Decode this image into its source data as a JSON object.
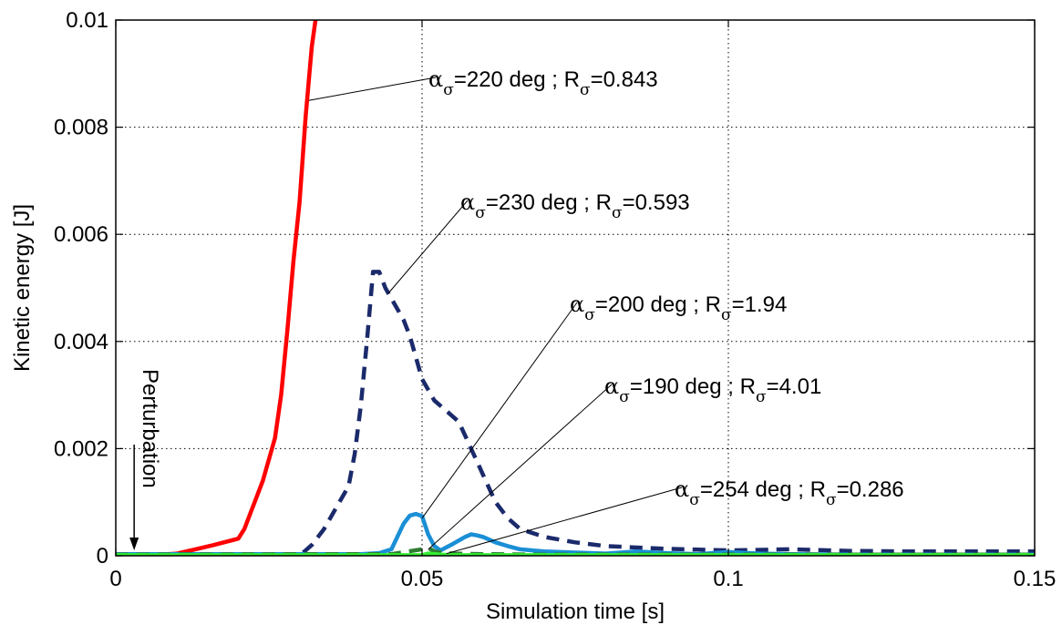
{
  "chart_data": {
    "type": "line",
    "title": "",
    "xlabel": "Simulation time [s]",
    "ylabel": "Kinetic energy [J]",
    "xlim": [
      0,
      0.15
    ],
    "ylim": [
      0,
      0.01
    ],
    "x_ticks": [
      0,
      0.05,
      0.1,
      0.15
    ],
    "x_tick_labels": [
      "0",
      "0.05",
      "0.1",
      "0.15"
    ],
    "y_ticks": [
      0,
      0.002,
      0.004,
      0.006,
      0.008,
      0.01
    ],
    "y_tick_labels": [
      "0",
      "0.002",
      "0.004",
      "0.006",
      "0.008",
      "0.01"
    ],
    "grid": true,
    "series": [
      {
        "key": "a220",
        "color": "#ff0000",
        "dash": "solid",
        "x": [
          0,
          0.006,
          0.01,
          0.013,
          0.016,
          0.018,
          0.02,
          0.021,
          0.022,
          0.023,
          0.024,
          0.025,
          0.026,
          0.027,
          0.028,
          0.029,
          0.03,
          0.031,
          0.032,
          0.0326
        ],
        "y": [
          0,
          1e-05,
          4e-05,
          0.00012,
          0.0002,
          0.00026,
          0.00032,
          0.0005,
          0.0008,
          0.0011,
          0.0014,
          0.0018,
          0.0022,
          0.003,
          0.0042,
          0.0055,
          0.0066,
          0.0082,
          0.0095,
          0.01
        ]
      },
      {
        "key": "a230",
        "color": "#1b2a6b",
        "dash": "dashed",
        "x": [
          0,
          0.03,
          0.032,
          0.034,
          0.036,
          0.038,
          0.039,
          0.04,
          0.041,
          0.042,
          0.043,
          0.044,
          0.045,
          0.046,
          0.047,
          0.048,
          0.049,
          0.05,
          0.052,
          0.054,
          0.056,
          0.058,
          0.06,
          0.062,
          0.064,
          0.066,
          0.07,
          0.075,
          0.08,
          0.09,
          0.1,
          0.11,
          0.12,
          0.13,
          0.14,
          0.15
        ],
        "y": [
          0,
          0,
          0.0002,
          0.0005,
          0.0009,
          0.0013,
          0.0019,
          0.0028,
          0.004,
          0.0053,
          0.0053,
          0.005,
          0.0048,
          0.0046,
          0.0044,
          0.0041,
          0.0037,
          0.0033,
          0.0029,
          0.0027,
          0.0025,
          0.002,
          0.0015,
          0.001,
          0.0007,
          0.0005,
          0.00035,
          0.00025,
          0.00018,
          0.00013,
          0.0001,
          0.00012,
          9e-05,
          8e-05,
          8e-05,
          8e-05
        ]
      },
      {
        "key": "a200",
        "color": "#1a8fd6",
        "dash": "solid",
        "x": [
          0,
          0.04,
          0.043,
          0.045,
          0.047,
          0.048,
          0.049,
          0.05,
          0.051,
          0.052,
          0.053,
          0.055,
          0.057,
          0.058,
          0.059,
          0.06,
          0.062,
          0.064,
          0.066,
          0.068,
          0.07,
          0.075,
          0.08,
          0.085,
          0.09,
          0.095,
          0.1,
          0.105,
          0.11,
          0.12,
          0.15
        ],
        "y": [
          3e-05,
          3e-05,
          5e-05,
          0.00012,
          0.0006,
          0.00075,
          0.00078,
          0.00074,
          0.0004,
          0.00018,
          0.0001,
          0.00022,
          0.00035,
          0.0004,
          0.00038,
          0.00035,
          0.00025,
          0.00018,
          0.00012,
          0.0001,
          8e-05,
          6e-05,
          4e-05,
          8e-05,
          5e-05,
          3e-05,
          7e-05,
          4e-05,
          3e-05,
          2e-05,
          2e-05
        ]
      },
      {
        "key": "a190",
        "color": "#2e7d32",
        "dash": "dashed",
        "x": [
          0,
          0.045,
          0.05,
          0.051,
          0.052,
          0.055,
          0.06,
          0.07,
          0.15
        ],
        "y": [
          2e-05,
          3e-05,
          0.00012,
          0.00015,
          8e-05,
          4e-05,
          3e-05,
          2e-05,
          2e-05
        ]
      },
      {
        "key": "a254",
        "color": "#33ee33",
        "dash": "solid",
        "x": [
          0,
          0.05,
          0.051,
          0.053,
          0.055,
          0.06,
          0.15
        ],
        "y": [
          1e-05,
          1e-05,
          4e-05,
          2e-05,
          1e-05,
          1e-05,
          1e-05
        ]
      }
    ],
    "annotations": [
      {
        "series": "a220",
        "alpha_val": "220",
        "r_val": "0.843",
        "target": [
          0.0315,
          0.0085
        ]
      },
      {
        "series": "a230",
        "alpha_val": "230",
        "r_val": "0.593",
        "target": [
          0.0445,
          0.0049
        ]
      },
      {
        "series": "a200",
        "alpha_val": "200",
        "r_val": "1.94",
        "target": [
          0.05,
          0.0007
        ]
      },
      {
        "series": "a190",
        "alpha_val": "190",
        "r_val": "4.01",
        "target": [
          0.051,
          0.00012
        ]
      },
      {
        "series": "a254",
        "alpha_val": "254",
        "r_val": "0.286",
        "target": [
          0.054,
          4e-05
        ]
      }
    ],
    "annotation_text": {
      "alpha": "α",
      "r": "R",
      "sub": "σ",
      "deg": "deg",
      "sep": ";"
    },
    "perturbation": {
      "label": "Perturbation",
      "x": 0.003
    }
  }
}
